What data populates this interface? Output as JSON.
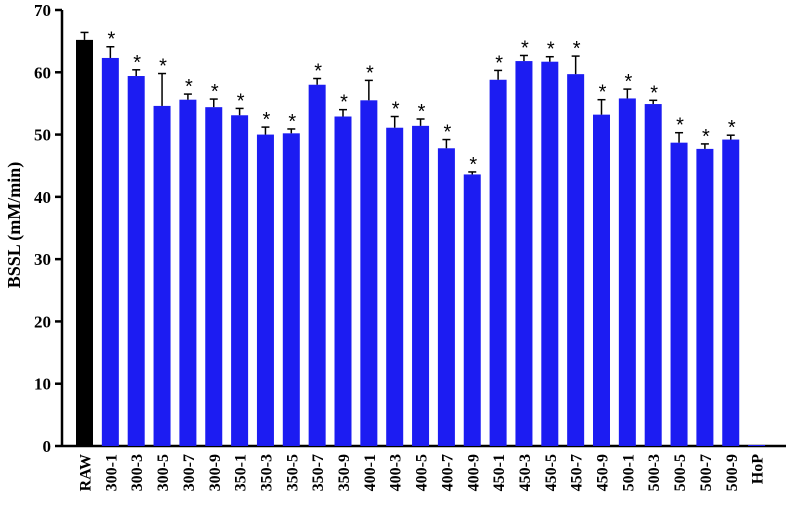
{
  "chart_data": {
    "type": "bar",
    "title": "",
    "xlabel": "",
    "ylabel": "BSSL (mM/min)",
    "ylim": [
      0,
      70
    ],
    "yticks": [
      0,
      10,
      20,
      30,
      40,
      50,
      60,
      70
    ],
    "grid": false,
    "categories": [
      "RAW",
      "300-1",
      "300-3",
      "300-5",
      "300-7",
      "300-9",
      "350-1",
      "350-3",
      "350-5",
      "350-7",
      "350-9",
      "400-1",
      "400-3",
      "400-5",
      "400-7",
      "400-9",
      "450-1",
      "450-3",
      "450-5",
      "450-7",
      "450-9",
      "500-1",
      "500-3",
      "500-5",
      "500-7",
      "500-9",
      "HoP"
    ],
    "values": [
      65.2,
      62.3,
      59.4,
      54.6,
      55.6,
      54.4,
      53.1,
      50.0,
      50.2,
      58.0,
      52.9,
      55.5,
      51.1,
      51.4,
      47.8,
      43.6,
      58.8,
      61.8,
      61.7,
      59.7,
      53.2,
      55.8,
      54.9,
      48.7,
      47.7,
      49.2,
      0.1
    ],
    "errors": [
      1.2,
      1.8,
      1.0,
      5.2,
      0.9,
      1.3,
      1.1,
      1.2,
      0.7,
      1.0,
      1.1,
      3.2,
      1.8,
      1.1,
      1.4,
      0.4,
      1.5,
      0.9,
      0.8,
      2.9,
      2.4,
      1.5,
      0.6,
      1.6,
      0.8,
      0.7,
      0.0
    ],
    "significance": [
      "",
      "*",
      "*",
      "*",
      "*",
      "*",
      "*",
      "*",
      "*",
      "*",
      "*",
      "*",
      "*",
      "*",
      "*",
      "*",
      "*",
      "*",
      "*",
      "*",
      "*",
      "*",
      "*",
      "*",
      "*",
      "*",
      ""
    ],
    "colors": {
      "control": "#000000",
      "treatment": "#1c1cf2"
    }
  }
}
